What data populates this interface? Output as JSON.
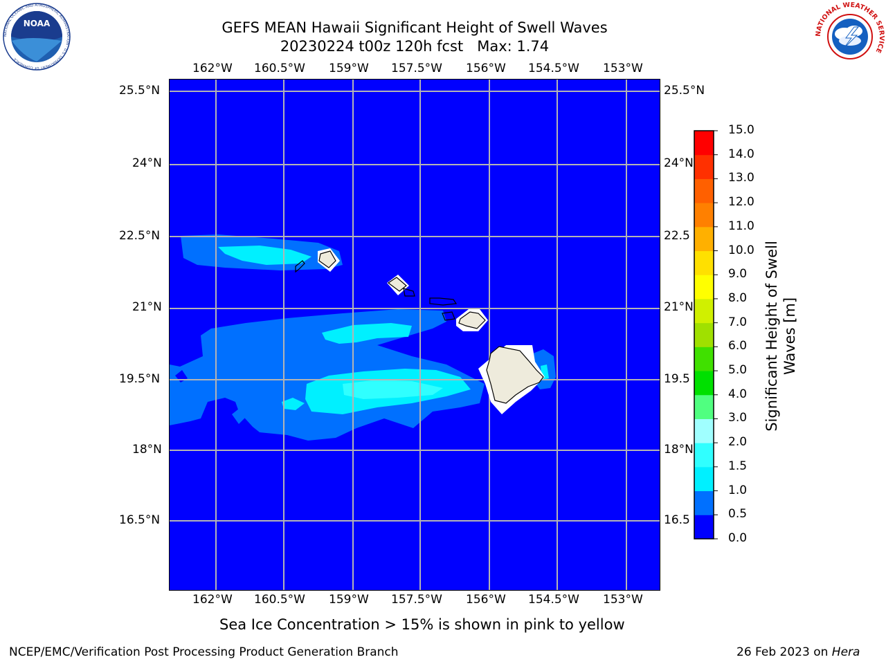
{
  "title": {
    "line1": "GEFS MEAN Hawaii Significant Height of Swell Waves",
    "line2": "20230224 t00z 120h fcst   Max: 1.74"
  },
  "axes": {
    "lon_labels": [
      "162°W",
      "160.5°W",
      "159°W",
      "157.5°W",
      "156°W",
      "154.5°W",
      "153°W"
    ],
    "lat_labels": [
      "25.5°N",
      "24°N",
      "22.5°N",
      "21°N",
      "19.5°N",
      "18°N",
      "16.5°N"
    ],
    "lat_labels_right": [
      "25.5°N",
      "24°N",
      "22.5",
      "21°N",
      "19.5",
      "18°N",
      "16.5"
    ]
  },
  "colorbar": {
    "title_line1": "Significant Height of Swell",
    "title_line2": "Waves [m]",
    "ticks": [
      "0.0",
      "0.5",
      "1.0",
      "1.5",
      "2.0",
      "3.0",
      "4.0",
      "5.0",
      "6.0",
      "7.0",
      "8.0",
      "9.0",
      "10.0",
      "11.0",
      "12.0",
      "13.0",
      "14.0",
      "15.0"
    ],
    "colors": [
      "#0000ff",
      "#0070ff",
      "#00f0ff",
      "#30ffff",
      "#a0ffff",
      "#50ff80",
      "#00e000",
      "#40e000",
      "#a0e000",
      "#d0f000",
      "#ffff00",
      "#ffe000",
      "#ffb000",
      "#ff8000",
      "#ff6000",
      "#ff3000",
      "#ff0000"
    ]
  },
  "chart_data": {
    "type": "heatmap",
    "title": "GEFS MEAN Hawaii Significant Height of Swell Waves",
    "subtitle": "20230224 t00z 120h fcst   Max: 1.74",
    "variable": "Significant Height of Swell Waves [m]",
    "max_value": 1.74,
    "lon_range": [
      "163°W",
      "151.9°W"
    ],
    "lat_range": [
      "15.2°N",
      "25.8°N"
    ],
    "contour_levels": [
      0.0,
      0.5,
      1.0,
      1.5,
      2.0,
      3.0,
      4.0,
      5.0,
      6.0,
      7.0,
      8.0,
      9.0,
      10.0,
      11.0,
      12.0,
      13.0,
      14.0,
      15.0
    ],
    "grid": true
  },
  "caption": "Sea Ice Concentration > 15% is shown in pink to yellow",
  "footer": {
    "left": "NCEP/EMC/Verification Post Processing Product Generation Branch",
    "right_prefix": "26 Feb 2023 on ",
    "right_italic": "Hera"
  },
  "logos": {
    "noaa_text": "NOAA",
    "noaa_ring": "NATIONAL OCEANIC AND ATMOSPHERIC ADMINISTRATION · U.S. DEPARTMENT OF COMMERCE",
    "nws_ring": "NATIONAL WEATHER SERVICE"
  }
}
